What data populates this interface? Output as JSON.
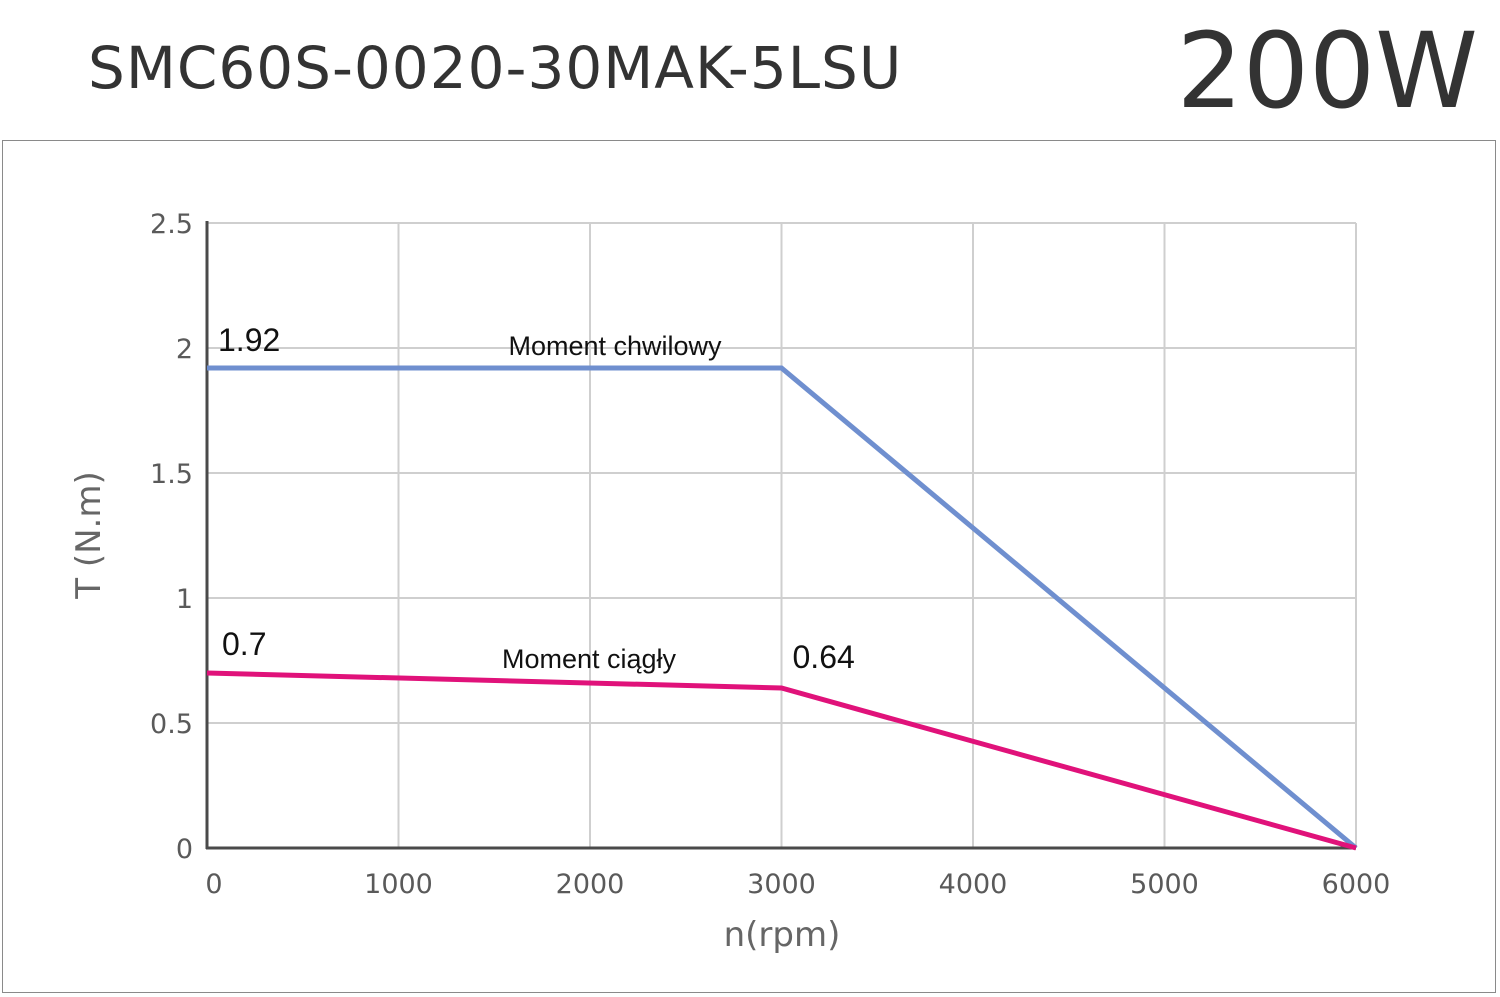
{
  "header": {
    "model": "SMC60S-0020-30MAK-5LSU",
    "power": "200W"
  },
  "chart_data": {
    "type": "line",
    "xlabel": "n(rpm)",
    "ylabel": "T (N.m)",
    "xlim": [
      0,
      6000
    ],
    "ylim": [
      0,
      2.5
    ],
    "x_ticks": [
      "0",
      "1000",
      "2000",
      "3000",
      "4000",
      "5000",
      "6000"
    ],
    "y_ticks": [
      "0",
      "0.5",
      "1",
      "1.5",
      "2",
      "2.5"
    ],
    "grid": true,
    "series": [
      {
        "name": "Moment chwilowy",
        "color": "#6f8fcf",
        "points": [
          [
            0,
            1.92
          ],
          [
            3000,
            1.92
          ],
          [
            6000,
            0
          ]
        ]
      },
      {
        "name": "Moment ciągły",
        "color": "#e0127a",
        "points": [
          [
            0,
            0.7
          ],
          [
            3000,
            0.64
          ],
          [
            6000,
            0
          ]
        ]
      }
    ],
    "annotations": [
      {
        "text": "1.92",
        "x": 0,
        "y": 1.92
      },
      {
        "text": "0.7",
        "x": 0,
        "y": 0.7
      },
      {
        "text": "0.64",
        "x": 3000,
        "y": 0.64
      }
    ]
  }
}
